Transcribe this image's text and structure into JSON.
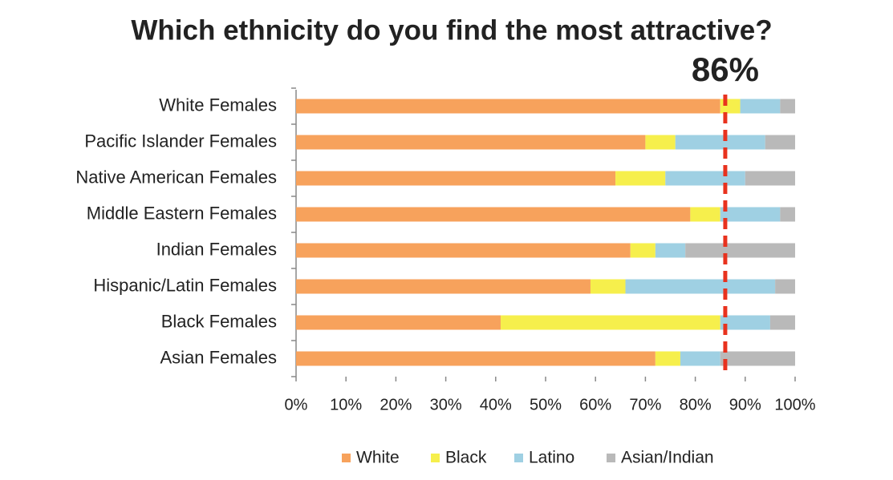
{
  "chart_data": {
    "type": "stacked-bar-horizontal",
    "title": "Which ethnicity do you find the most attractive?",
    "categories": [
      "White Females",
      "Pacific Islander Females",
      "Native American Females",
      "Middle Eastern Females",
      "Indian Females",
      "Hispanic/Latin Females",
      "Black Females",
      "Asian Females"
    ],
    "series": [
      {
        "name": "White",
        "color": "#f7a25c",
        "values": [
          85,
          70,
          64,
          79,
          67,
          59,
          41,
          72
        ]
      },
      {
        "name": "Black",
        "color": "#f6ef4c",
        "values": [
          4,
          6,
          10,
          6,
          5,
          7,
          44,
          5
        ]
      },
      {
        "name": "Latino",
        "color": "#9fd0e3",
        "values": [
          8,
          18,
          16,
          12,
          6,
          30,
          10,
          8
        ]
      },
      {
        "name": "Asian/Indian",
        "color": "#b9b9b9",
        "values": [
          3,
          6,
          10,
          3,
          22,
          4,
          5,
          15
        ]
      }
    ],
    "xlim": [
      0,
      100
    ],
    "xticks": [
      {
        "value": 0,
        "label": "0%"
      },
      {
        "value": 10,
        "label": "10%"
      },
      {
        "value": 20,
        "label": "20%"
      },
      {
        "value": 30,
        "label": "30%"
      },
      {
        "value": 40,
        "label": "40%"
      },
      {
        "value": 50,
        "label": "50%"
      },
      {
        "value": 60,
        "label": "60%"
      },
      {
        "value": 70,
        "label": "70%"
      },
      {
        "value": 80,
        "label": "80%"
      },
      {
        "value": 90,
        "label": "90%"
      },
      {
        "value": 100,
        "label": "100%"
      }
    ],
    "annotation": {
      "value": 86,
      "label": "86%",
      "color": "#e8321e"
    },
    "legend": "bottom"
  }
}
